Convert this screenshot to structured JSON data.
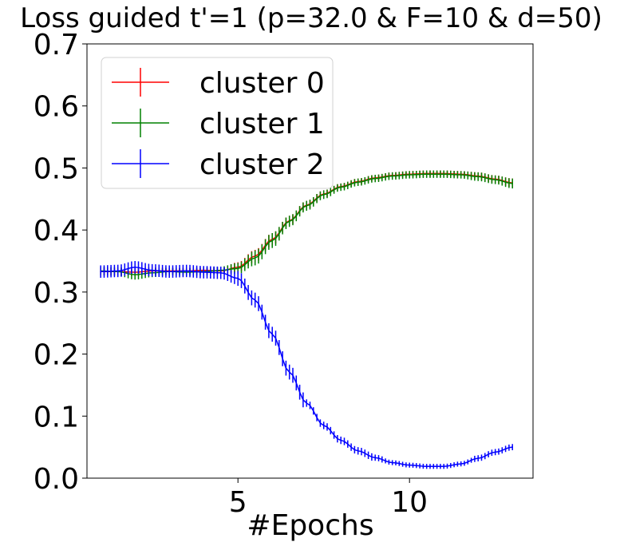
{
  "chart_data": {
    "type": "line",
    "title": "Loss guided t'=1  (p=32.0 & F=10 & d=50)",
    "xlabel": "#Epochs",
    "ylabel": "",
    "xlim": [
      0.6,
      13.6
    ],
    "ylim": [
      0.0,
      0.7
    ],
    "xticks": [
      5,
      10
    ],
    "xtick_labels": [
      "5",
      "10"
    ],
    "yticks": [
      0.0,
      0.1,
      0.2,
      0.3,
      0.4,
      0.5,
      0.6,
      0.7
    ],
    "ytick_labels": [
      "0.0",
      "0.1",
      "0.2",
      "0.3",
      "0.4",
      "0.5",
      "0.6",
      "0.7"
    ],
    "legend_position": "top-left",
    "x": [
      1.0,
      1.5,
      2.0,
      2.5,
      3.0,
      3.5,
      4.0,
      4.5,
      5.0,
      5.5,
      6.0,
      6.5,
      7.0,
      7.5,
      8.0,
      8.5,
      9.0,
      9.5,
      10.0,
      10.5,
      11.0,
      11.5,
      12.0,
      12.5,
      13.0
    ],
    "series": [
      {
        "name": "cluster 0",
        "color": "#ff0000",
        "values": [
          0.333,
          0.333,
          0.332,
          0.334,
          0.334,
          0.334,
          0.335,
          0.334,
          0.34,
          0.358,
          0.385,
          0.415,
          0.44,
          0.458,
          0.47,
          0.478,
          0.484,
          0.488,
          0.49,
          0.491,
          0.491,
          0.49,
          0.487,
          0.482,
          0.476
        ],
        "errors": [
          0.006,
          0.006,
          0.006,
          0.006,
          0.005,
          0.005,
          0.005,
          0.005,
          0.008,
          0.01,
          0.01,
          0.008,
          0.007,
          0.006,
          0.005,
          0.005,
          0.005,
          0.005,
          0.005,
          0.005,
          0.005,
          0.005,
          0.006,
          0.006,
          0.007
        ]
      },
      {
        "name": "cluster 1",
        "color": "#008000",
        "values": [
          0.334,
          0.333,
          0.328,
          0.331,
          0.333,
          0.332,
          0.333,
          0.335,
          0.338,
          0.355,
          0.383,
          0.414,
          0.439,
          0.457,
          0.469,
          0.477,
          0.483,
          0.487,
          0.489,
          0.49,
          0.49,
          0.489,
          0.486,
          0.481,
          0.475
        ],
        "errors": [
          0.007,
          0.007,
          0.008,
          0.007,
          0.006,
          0.006,
          0.006,
          0.006,
          0.009,
          0.012,
          0.012,
          0.009,
          0.008,
          0.007,
          0.006,
          0.006,
          0.006,
          0.006,
          0.006,
          0.006,
          0.006,
          0.006,
          0.007,
          0.007,
          0.008
        ]
      },
      {
        "name": "cluster 2",
        "color": "#0000ff",
        "values": [
          0.333,
          0.334,
          0.34,
          0.335,
          0.333,
          0.334,
          0.332,
          0.331,
          0.322,
          0.287,
          0.232,
          0.171,
          0.121,
          0.085,
          0.061,
          0.044,
          0.033,
          0.025,
          0.021,
          0.019,
          0.019,
          0.023,
          0.032,
          0.042,
          0.05
        ]
      }
    ]
  }
}
